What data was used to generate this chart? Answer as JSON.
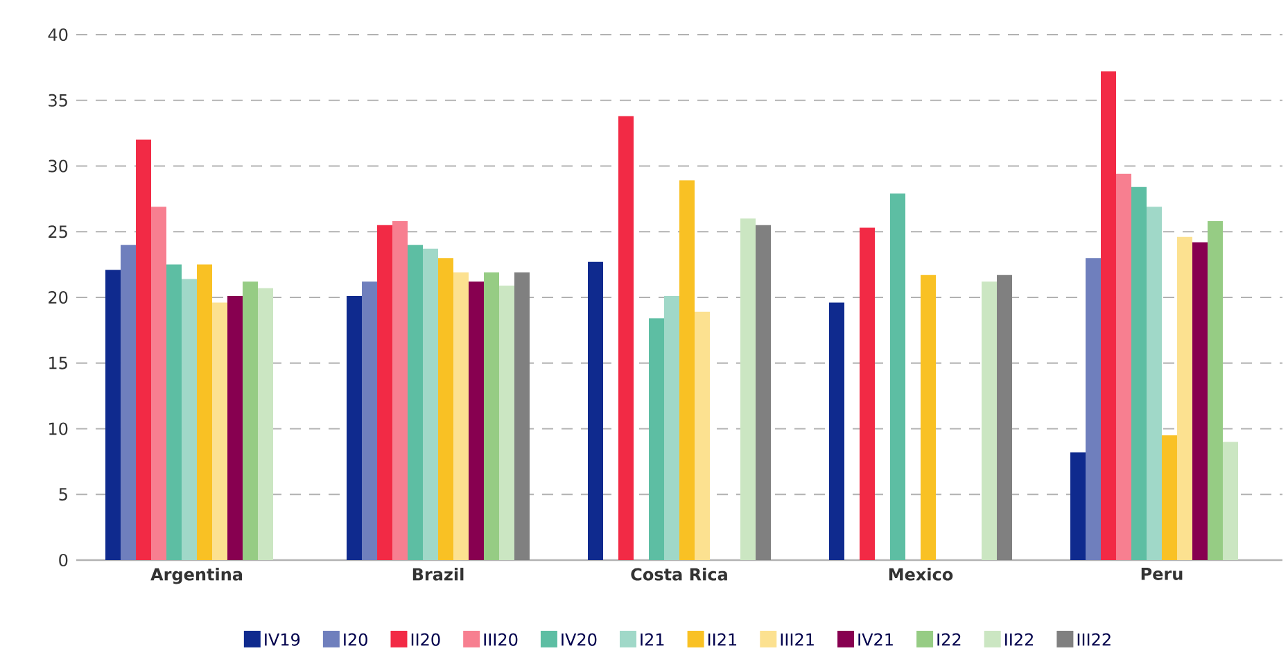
{
  "chart_data": {
    "type": "bar",
    "categories": [
      "Argentina",
      "Brazil",
      "Costa Rica",
      "Mexico",
      "Peru"
    ],
    "series": [
      {
        "name": "IV19",
        "color": "#0f2a8e",
        "values": [
          22.1,
          20.1,
          22.7,
          19.6,
          8.2
        ]
      },
      {
        "name": "I20",
        "color": "#6f7fbd",
        "values": [
          24.0,
          21.2,
          null,
          null,
          23.0
        ]
      },
      {
        "name": "II20",
        "color": "#f22a45",
        "values": [
          32.0,
          25.5,
          33.8,
          25.3,
          37.2
        ]
      },
      {
        "name": "III20",
        "color": "#f77f90",
        "values": [
          26.9,
          25.8,
          null,
          null,
          29.4
        ]
      },
      {
        "name": "IV20",
        "color": "#5dbea3",
        "values": [
          22.5,
          24.0,
          18.4,
          27.9,
          28.4
        ]
      },
      {
        "name": "I21",
        "color": "#a0d8c8",
        "values": [
          21.4,
          23.7,
          20.1,
          null,
          26.9
        ]
      },
      {
        "name": "II21",
        "color": "#f9c124",
        "values": [
          22.5,
          23.0,
          28.9,
          21.7,
          9.5
        ]
      },
      {
        "name": "III21",
        "color": "#fce190",
        "values": [
          19.6,
          21.9,
          18.9,
          null,
          24.6
        ]
      },
      {
        "name": "IV21",
        "color": "#870050",
        "values": [
          20.1,
          21.2,
          null,
          null,
          24.2
        ]
      },
      {
        "name": "I22",
        "color": "#96cc84",
        "values": [
          21.2,
          21.9,
          null,
          null,
          25.8
        ]
      },
      {
        "name": "II22",
        "color": "#cbe6c2",
        "values": [
          20.7,
          20.9,
          26.0,
          21.2,
          9.0
        ]
      },
      {
        "name": "III22",
        "color": "#808080",
        "values": [
          null,
          21.9,
          25.5,
          21.7,
          null
        ]
      }
    ],
    "ylim": [
      0,
      40
    ],
    "yticks": [
      0,
      5,
      10,
      15,
      20,
      25,
      30,
      35,
      40
    ],
    "grid": "y",
    "legend": "bottom"
  }
}
